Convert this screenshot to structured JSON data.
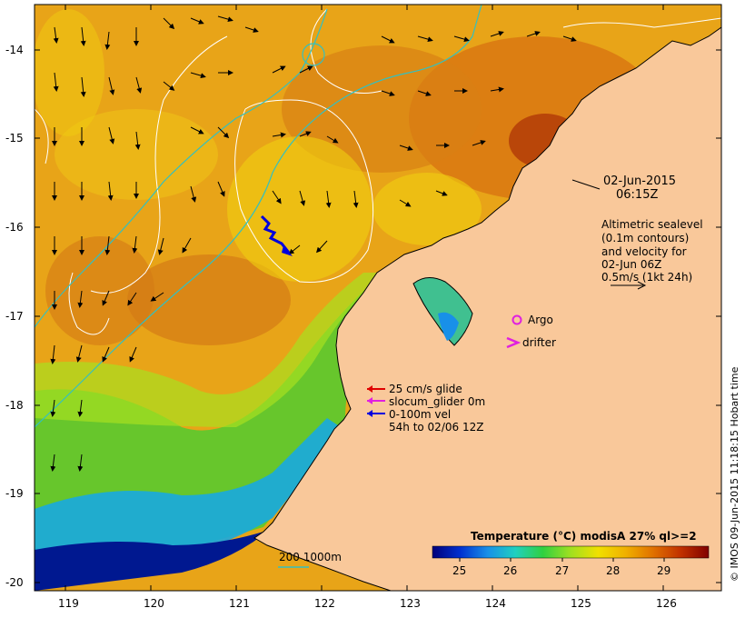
{
  "map": {
    "x_ticks": [
      "119",
      "120",
      "121",
      "122",
      "123",
      "124",
      "125",
      "126"
    ],
    "y_ticks": [
      "-14",
      "-15",
      "-16",
      "-17",
      "-18",
      "-19",
      "-20"
    ],
    "date_line1": "02-Jun-2015",
    "date_line2": "06:15Z",
    "altimetry_lines": [
      "Altimetric sealevel",
      "(0.1m contours)",
      "and velocity for",
      "02-Jun 06Z",
      "0.5m/s (1kt 24h)"
    ],
    "argo_label": "Argo",
    "drifter_label": "drifter",
    "glider_legend": [
      "25 cm/s glide",
      "slocum_glider 0m",
      "0-100m vel",
      "54h to 02/06 12Z"
    ],
    "isobath_label": "200  1000m",
    "credit": "© IMOS 09-Jun-2015 11:18:15 Hobart time",
    "colors": {
      "land": "#f9c89a",
      "argo": "#e020e0",
      "glide_red": "#e00000",
      "glider_magenta": "#e020e0",
      "vel_blue": "#0000dd",
      "isobath": "#33c0c0"
    }
  },
  "colorbar": {
    "title": "Temperature (°C) modisA 27% ql>=2",
    "ticks": [
      "25",
      "26",
      "27",
      "28",
      "29"
    ],
    "colors": [
      "#00007a",
      "#0030d0",
      "#1890e8",
      "#20d0c0",
      "#30d040",
      "#a0e020",
      "#f0e000",
      "#f0b000",
      "#e07000",
      "#c03000",
      "#800000"
    ]
  }
}
